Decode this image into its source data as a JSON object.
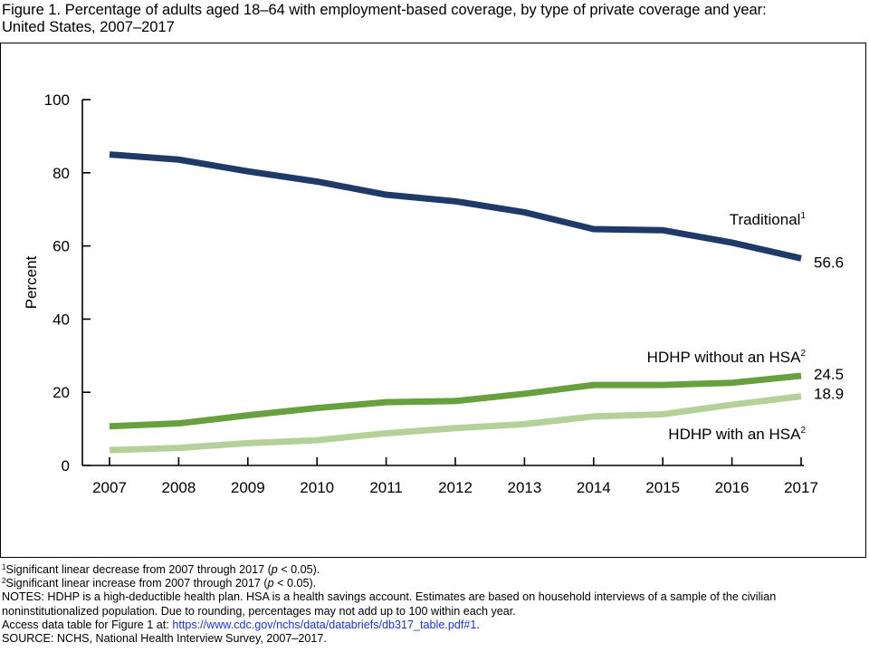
{
  "figure": {
    "title_line1": "Figure 1. Percentage of adults aged 18–64 with employment-based coverage, by type of private coverage and year:",
    "title_line2": "United States, 2007–2017"
  },
  "chart_data": {
    "type": "line",
    "title": "Figure 1. Percentage of adults aged 18–64 with employment-based coverage, by type of private coverage and year: United States, 2007–2017",
    "xlabel": "",
    "ylabel": "Percent",
    "x": [
      "2007",
      "2008",
      "2009",
      "2010",
      "2011",
      "2012",
      "2013",
      "2014",
      "2015",
      "2016",
      "2017"
    ],
    "ylim": [
      0,
      100
    ],
    "yticks": [
      0,
      20,
      40,
      60,
      80,
      100
    ],
    "grid": false,
    "legend": "none (series labelled directly on lines)",
    "series": [
      {
        "name": "Traditional",
        "footnote": "1",
        "color": "#1f3a68",
        "values": [
          85.0,
          83.6,
          80.4,
          77.6,
          74.0,
          72.2,
          69.2,
          64.6,
          64.3,
          60.9,
          56.6
        ],
        "end_label": "56.6"
      },
      {
        "name": "HDHP without an HSA",
        "footnote": "2",
        "color": "#67a03e",
        "values": [
          10.7,
          11.5,
          13.7,
          15.7,
          17.3,
          17.6,
          19.6,
          22.0,
          22.0,
          22.6,
          24.5
        ],
        "end_label": "24.5"
      },
      {
        "name": "HDHP with an HSA",
        "footnote": "2",
        "color": "#b4d19a",
        "values": [
          4.2,
          4.8,
          6.1,
          6.9,
          8.8,
          10.2,
          11.3,
          13.4,
          14.0,
          16.6,
          18.9
        ],
        "end_label": "18.9"
      }
    ]
  },
  "notes": {
    "fn1_sup": "1",
    "fn1_a": "Significant linear decrease from 2007 through 2017 (",
    "fn1_p": "p",
    "fn1_b": " < 0.05).",
    "fn2_sup": "2",
    "fn2_a": "Significant linear increase from 2007 through 2017 (",
    "fn2_p": "p",
    "fn2_b": " < 0.05).",
    "notes_text": "NOTES: HDHP is a high-deductible health plan. HSA is a health savings account. Estimates are based on household interviews of a sample of the civilian noninstitutionalized population. Due to rounding, percentages may not add up to 100 within each year.",
    "access_prefix": "Access data table for Figure 1 at: ",
    "access_link": "https://www.cdc.gov/nchs/data/databriefs/db317_table.pdf#1",
    "access_suffix": ".",
    "source": "SOURCE: NCHS, National Health Interview Survey, 2007–2017."
  }
}
